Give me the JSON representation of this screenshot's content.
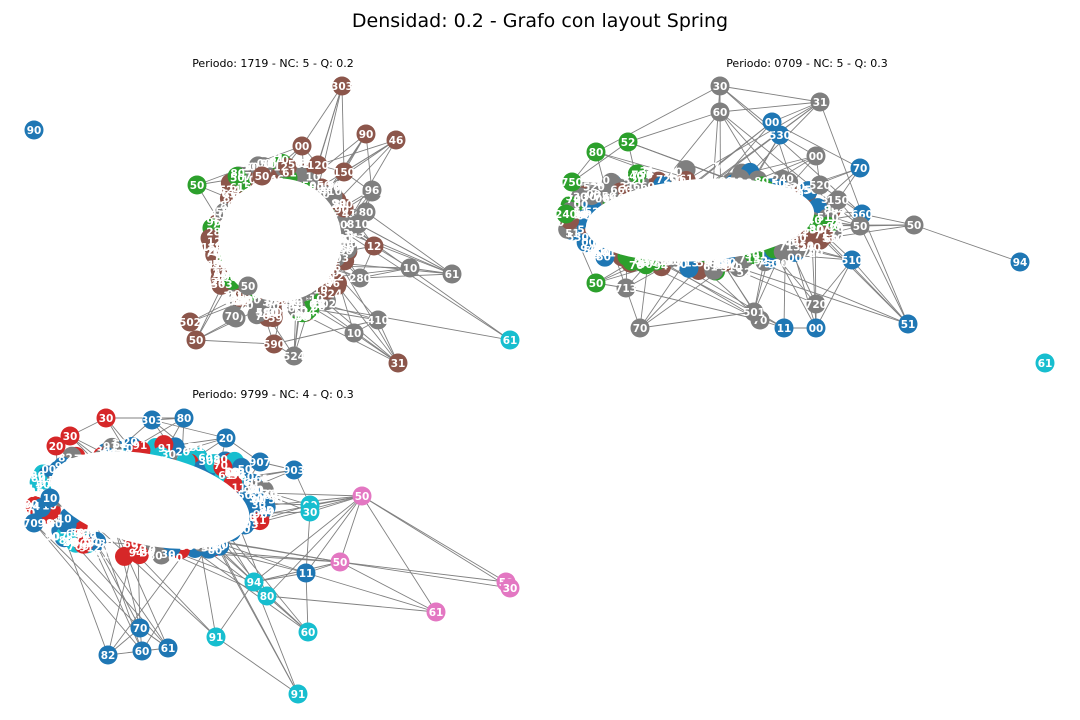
{
  "figure": {
    "title": "Densidad: 0.2 - Grafo con layout Spring"
  },
  "colors": {
    "edge": "#808080",
    "blue": "#1f77b4",
    "brown": "#8c564b",
    "gray": "#7f7f7f",
    "green": "#2ca02c",
    "red": "#d62728",
    "cyan": "#17becf",
    "pink": "#e377c2"
  },
  "panels": [
    {
      "id": "p1719",
      "title": "Periodo: 1719 - NC: 5 - Q: 0.2",
      "nodes": [
        {
          "label": "90",
          "c": "blue"
        },
        {
          "label": "303",
          "c": "brown"
        },
        {
          "label": "90",
          "c": "brown"
        },
        {
          "label": "46",
          "c": "brown"
        },
        {
          "label": "00",
          "c": "brown"
        },
        {
          "label": "120",
          "c": "brown"
        },
        {
          "label": "150",
          "c": "brown"
        },
        {
          "label": "190",
          "c": "gray"
        },
        {
          "label": "96",
          "c": "gray"
        },
        {
          "label": "80",
          "c": "gray"
        },
        {
          "label": "810",
          "c": "gray"
        },
        {
          "label": "12",
          "c": "brown"
        },
        {
          "label": "280",
          "c": "gray"
        },
        {
          "label": "10",
          "c": "gray"
        },
        {
          "label": "61",
          "c": "gray"
        },
        {
          "label": "502",
          "c": "brown"
        },
        {
          "label": "50",
          "c": "brown"
        },
        {
          "label": "70",
          "c": "gray"
        },
        {
          "label": "50",
          "c": "gray"
        },
        {
          "label": "524",
          "c": "gray"
        },
        {
          "label": "590",
          "c": "brown"
        },
        {
          "label": "410",
          "c": "gray"
        },
        {
          "label": "10",
          "c": "gray"
        },
        {
          "label": "31",
          "c": "brown"
        },
        {
          "label": "61",
          "c": "cyan"
        },
        {
          "label": "50",
          "c": "green"
        },
        {
          "label": "70",
          "c": "gray"
        },
        {
          "label": "50",
          "c": "brown"
        }
      ],
      "edges": [
        [
          1,
          4
        ],
        [
          1,
          5
        ],
        [
          1,
          6
        ],
        [
          2,
          6
        ],
        [
          3,
          6
        ],
        [
          4,
          5
        ],
        [
          5,
          6
        ],
        [
          6,
          7
        ],
        [
          7,
          8
        ],
        [
          8,
          9
        ],
        [
          9,
          10
        ],
        [
          10,
          11
        ],
        [
          11,
          12
        ],
        [
          12,
          13
        ],
        [
          13,
          14
        ],
        [
          12,
          14
        ],
        [
          11,
          13
        ],
        [
          15,
          16
        ],
        [
          16,
          17
        ],
        [
          17,
          18
        ],
        [
          18,
          19
        ],
        [
          19,
          20
        ],
        [
          20,
          21
        ],
        [
          21,
          22
        ],
        [
          22,
          23
        ],
        [
          21,
          23
        ],
        [
          18,
          23
        ],
        [
          16,
          20
        ],
        [
          25,
          4
        ],
        [
          25,
          5
        ],
        [
          26,
          17
        ],
        [
          27,
          5
        ],
        [
          0,
          0
        ],
        [
          9,
          14
        ],
        [
          10,
          14
        ],
        [
          3,
          5
        ],
        [
          2,
          7
        ]
      ]
    },
    {
      "id": "p0709",
      "title": "Periodo: 0709 - NC: 5 - Q: 0.3",
      "nodes": [
        {
          "label": "30",
          "c": "gray"
        },
        {
          "label": "31",
          "c": "gray"
        },
        {
          "label": "60",
          "c": "gray"
        },
        {
          "label": "530",
          "c": "blue"
        },
        {
          "label": "00",
          "c": "blue"
        },
        {
          "label": "52",
          "c": "green"
        },
        {
          "label": "80",
          "c": "green"
        },
        {
          "label": "00",
          "c": "gray"
        },
        {
          "label": "70",
          "c": "blue"
        },
        {
          "label": "520",
          "c": "gray"
        },
        {
          "label": "150",
          "c": "gray"
        },
        {
          "label": "660",
          "c": "blue"
        },
        {
          "label": "50",
          "c": "gray"
        },
        {
          "label": "50",
          "c": "gray"
        },
        {
          "label": "94",
          "c": "blue"
        },
        {
          "label": "51",
          "c": "blue"
        },
        {
          "label": "510",
          "c": "blue"
        },
        {
          "label": "00",
          "c": "blue"
        },
        {
          "label": "11",
          "c": "blue"
        },
        {
          "label": "70",
          "c": "gray"
        },
        {
          "label": "501",
          "c": "gray"
        },
        {
          "label": "70",
          "c": "gray"
        },
        {
          "label": "713",
          "c": "gray"
        },
        {
          "label": "50",
          "c": "green"
        },
        {
          "label": "720",
          "c": "gray"
        },
        {
          "label": "61",
          "c": "cyan"
        },
        {
          "label": "750",
          "c": "green"
        },
        {
          "label": "240",
          "c": "green"
        }
      ],
      "edges": [
        [
          0,
          1
        ],
        [
          0,
          2
        ],
        [
          0,
          3
        ],
        [
          1,
          2
        ],
        [
          1,
          4
        ],
        [
          2,
          5
        ],
        [
          0,
          6
        ],
        [
          3,
          7
        ],
        [
          4,
          8
        ],
        [
          7,
          9
        ],
        [
          8,
          10
        ],
        [
          9,
          11
        ],
        [
          10,
          12
        ],
        [
          11,
          12
        ],
        [
          12,
          13
        ],
        [
          13,
          14
        ],
        [
          11,
          13
        ],
        [
          12,
          15
        ],
        [
          11,
          15
        ],
        [
          15,
          16
        ],
        [
          16,
          17
        ],
        [
          17,
          18
        ],
        [
          18,
          19
        ],
        [
          19,
          20
        ],
        [
          20,
          21
        ],
        [
          21,
          22
        ],
        [
          22,
          23
        ],
        [
          19,
          22
        ],
        [
          17,
          24
        ],
        [
          24,
          16
        ],
        [
          26,
          6
        ],
        [
          27,
          23
        ],
        [
          5,
          26
        ],
        [
          1,
          11
        ],
        [
          0,
          11
        ],
        [
          2,
          12
        ]
      ]
    },
    {
      "id": "p9799",
      "title": "Periodo: 9799 - NC: 4 - Q: 0.3",
      "nodes": [
        {
          "label": "30",
          "c": "red"
        },
        {
          "label": "80",
          "c": "blue"
        },
        {
          "label": "303",
          "c": "blue"
        },
        {
          "label": "20",
          "c": "blue"
        },
        {
          "label": "907",
          "c": "blue"
        },
        {
          "label": "903",
          "c": "blue"
        },
        {
          "label": "00",
          "c": "cyan"
        },
        {
          "label": "30",
          "c": "cyan"
        },
        {
          "label": "50",
          "c": "pink"
        },
        {
          "label": "10",
          "c": "blue"
        },
        {
          "label": "709",
          "c": "blue"
        },
        {
          "label": "50",
          "c": "pink"
        },
        {
          "label": "11",
          "c": "blue"
        },
        {
          "label": "94",
          "c": "cyan"
        },
        {
          "label": "80",
          "c": "cyan"
        },
        {
          "label": "50",
          "c": "pink"
        },
        {
          "label": "30",
          "c": "pink"
        },
        {
          "label": "61",
          "c": "pink"
        },
        {
          "label": "60",
          "c": "cyan"
        },
        {
          "label": "91",
          "c": "cyan"
        },
        {
          "label": "91",
          "c": "cyan"
        },
        {
          "label": "61",
          "c": "blue"
        },
        {
          "label": "60",
          "c": "blue"
        },
        {
          "label": "82",
          "c": "blue"
        },
        {
          "label": "70",
          "c": "blue"
        },
        {
          "label": "20",
          "c": "red"
        },
        {
          "label": "30",
          "c": "red"
        }
      ],
      "edges": [
        [
          8,
          11
        ],
        [
          8,
          12
        ],
        [
          8,
          13
        ],
        [
          8,
          14
        ],
        [
          8,
          6
        ],
        [
          8,
          7
        ],
        [
          8,
          15
        ],
        [
          8,
          16
        ],
        [
          8,
          17
        ],
        [
          11,
          15
        ],
        [
          11,
          16
        ],
        [
          11,
          17
        ],
        [
          11,
          12
        ],
        [
          11,
          13
        ],
        [
          12,
          13
        ],
        [
          13,
          14
        ],
        [
          14,
          18
        ],
        [
          12,
          18
        ],
        [
          13,
          19
        ],
        [
          13,
          20
        ],
        [
          19,
          20
        ],
        [
          18,
          13
        ],
        [
          21,
          22
        ],
        [
          22,
          23
        ],
        [
          23,
          24
        ],
        [
          21,
          24
        ],
        [
          22,
          24
        ],
        [
          9,
          10
        ],
        [
          10,
          24
        ],
        [
          24,
          21
        ],
        [
          0,
          1
        ],
        [
          1,
          2
        ],
        [
          2,
          3
        ],
        [
          3,
          4
        ],
        [
          4,
          5
        ],
        [
          5,
          6
        ],
        [
          6,
          7
        ],
        [
          7,
          12
        ],
        [
          25,
          26
        ],
        [
          26,
          0
        ],
        [
          12,
          17
        ],
        [
          14,
          17
        ],
        [
          9,
          23
        ],
        [
          10,
          22
        ]
      ]
    }
  ]
}
